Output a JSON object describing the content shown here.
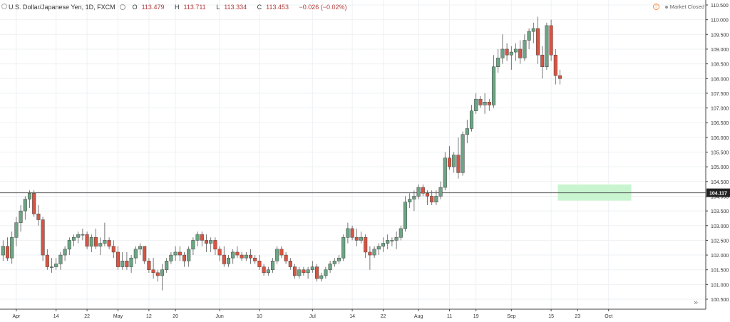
{
  "header": {
    "symbol": "U.S. Dollar/Japanese Yen, 1D, FXCM",
    "open_label": "O",
    "open": "113.479",
    "high_label": "H",
    "high": "113.711",
    "low_label": "L",
    "low": "113.334",
    "close_label": "C",
    "close": "113.453",
    "change": "−0.026 (−0.02%)",
    "market_status": "Market Closed"
  },
  "colors": {
    "up": "#6ba583",
    "down": "#d75442",
    "zone": "#c8f5d0",
    "line": "#555555"
  },
  "chart_data": {
    "type": "candlestick",
    "y_axis": {
      "ylim": [
        100.25,
        110.55
      ],
      "ticks": [
        "110.500",
        "110.000",
        "109.500",
        "109.000",
        "108.500",
        "108.000",
        "107.500",
        "107.000",
        "106.500",
        "106.000",
        "105.500",
        "105.000",
        "104.500",
        "104.000",
        "103.500",
        "103.000",
        "102.500",
        "102.000",
        "101.500",
        "101.000",
        "100.500"
      ],
      "tick_values": [
        110.5,
        110,
        109.5,
        109,
        108.5,
        108,
        107.5,
        107,
        106.5,
        106,
        105.5,
        105,
        104.5,
        104,
        103.5,
        103,
        102.5,
        102,
        101.5,
        101,
        100.5
      ]
    },
    "x_axis": {
      "labels": [
        "Apr",
        "14",
        "22",
        "May",
        "12",
        "20",
        "Jun",
        "10",
        "Jul",
        "14",
        "22",
        "Aug",
        "11",
        "19",
        "Sep",
        "15",
        "23",
        "Oct"
      ],
      "label_index": [
        3,
        12,
        19,
        26,
        33,
        39,
        49,
        58,
        70,
        79,
        86,
        94,
        101,
        107,
        115,
        124,
        130,
        137
      ]
    },
    "horizontal_line": {
      "value": 104.117,
      "label": "104.117"
    },
    "zone": {
      "from_index": 126,
      "to_index": 141,
      "low": 103.85,
      "high": 104.4
    },
    "ohlc": [
      [
        102.0,
        102.5,
        101.8,
        102.3
      ],
      [
        102.3,
        102.6,
        101.8,
        101.9
      ],
      [
        101.9,
        102.8,
        101.7,
        102.6
      ],
      [
        102.6,
        103.3,
        102.3,
        103.1
      ],
      [
        103.1,
        103.7,
        102.8,
        103.5
      ],
      [
        103.5,
        104.0,
        103.2,
        103.9
      ],
      [
        103.9,
        104.2,
        103.6,
        104.1
      ],
      [
        104.1,
        104.2,
        103.3,
        103.4
      ],
      [
        103.4,
        103.7,
        103.0,
        103.2
      ],
      [
        103.2,
        103.3,
        101.8,
        102.0
      ],
      [
        102.0,
        102.2,
        101.5,
        101.6
      ],
      [
        101.6,
        101.9,
        101.4,
        101.6
      ],
      [
        101.6,
        101.9,
        101.5,
        101.7
      ],
      [
        101.7,
        102.1,
        101.5,
        102.0
      ],
      [
        102.0,
        102.3,
        101.8,
        102.2
      ],
      [
        102.2,
        102.6,
        102.0,
        102.5
      ],
      [
        102.5,
        102.7,
        102.3,
        102.6
      ],
      [
        102.6,
        102.8,
        102.4,
        102.7
      ],
      [
        102.7,
        102.9,
        102.5,
        102.7
      ],
      [
        102.7,
        102.8,
        102.2,
        102.3
      ],
      [
        102.3,
        102.7,
        102.1,
        102.6
      ],
      [
        102.6,
        102.9,
        102.2,
        102.3
      ],
      [
        102.3,
        102.6,
        102.0,
        102.4
      ],
      [
        102.4,
        103.1,
        102.3,
        102.5
      ],
      [
        102.5,
        102.6,
        102.2,
        102.3
      ],
      [
        102.3,
        102.5,
        101.9,
        102.1
      ],
      [
        102.1,
        102.3,
        101.5,
        101.6
      ],
      [
        101.6,
        102.1,
        101.5,
        101.8
      ],
      [
        101.8,
        102.1,
        101.5,
        101.6
      ],
      [
        101.6,
        102.0,
        101.4,
        101.9
      ],
      [
        101.9,
        102.3,
        101.7,
        102.2
      ],
      [
        102.2,
        102.4,
        102.0,
        102.3
      ],
      [
        102.3,
        102.3,
        101.7,
        101.8
      ],
      [
        101.8,
        101.9,
        101.4,
        101.5
      ],
      [
        101.5,
        101.9,
        101.2,
        101.4
      ],
      [
        101.4,
        101.5,
        101.1,
        101.3
      ],
      [
        101.3,
        101.7,
        100.8,
        101.5
      ],
      [
        101.5,
        101.9,
        101.4,
        101.8
      ],
      [
        101.8,
        102.1,
        101.7,
        102.0
      ],
      [
        102.0,
        102.3,
        101.8,
        102.1
      ],
      [
        102.1,
        102.3,
        101.8,
        102.0
      ],
      [
        102.0,
        102.1,
        101.6,
        101.8
      ],
      [
        101.8,
        102.3,
        101.6,
        102.2
      ],
      [
        102.2,
        102.6,
        102.0,
        102.5
      ],
      [
        102.5,
        102.8,
        102.3,
        102.7
      ],
      [
        102.7,
        102.8,
        102.3,
        102.5
      ],
      [
        102.5,
        102.7,
        102.1,
        102.4
      ],
      [
        102.4,
        102.6,
        102.1,
        102.5
      ],
      [
        102.5,
        102.6,
        102.0,
        102.2
      ],
      [
        102.2,
        102.3,
        101.8,
        102.0
      ],
      [
        102.0,
        102.3,
        101.6,
        101.7
      ],
      [
        101.7,
        102.0,
        101.6,
        101.9
      ],
      [
        101.9,
        102.2,
        101.7,
        102.1
      ],
      [
        102.1,
        102.3,
        101.9,
        102.0
      ],
      [
        102.0,
        102.1,
        101.8,
        101.9
      ],
      [
        101.9,
        102.1,
        101.8,
        102.0
      ],
      [
        102.0,
        102.2,
        101.7,
        101.9
      ],
      [
        101.9,
        102.0,
        101.7,
        101.8
      ],
      [
        101.8,
        102.0,
        101.5,
        101.6
      ],
      [
        101.6,
        101.7,
        101.3,
        101.4
      ],
      [
        101.4,
        101.6,
        101.3,
        101.5
      ],
      [
        101.5,
        101.9,
        101.4,
        101.8
      ],
      [
        101.8,
        102.3,
        101.7,
        102.2
      ],
      [
        102.2,
        102.3,
        101.9,
        102.0
      ],
      [
        102.0,
        102.1,
        101.7,
        101.8
      ],
      [
        101.8,
        101.9,
        101.5,
        101.6
      ],
      [
        101.6,
        101.7,
        101.2,
        101.3
      ],
      [
        101.3,
        101.6,
        101.2,
        101.5
      ],
      [
        101.5,
        101.6,
        101.3,
        101.4
      ],
      [
        101.4,
        101.6,
        101.2,
        101.5
      ],
      [
        101.5,
        101.8,
        101.4,
        101.6
      ],
      [
        101.6,
        101.7,
        101.1,
        101.2
      ],
      [
        101.2,
        101.4,
        101.1,
        101.3
      ],
      [
        101.3,
        101.6,
        101.2,
        101.5
      ],
      [
        101.5,
        101.8,
        101.4,
        101.7
      ],
      [
        101.7,
        101.9,
        101.6,
        101.8
      ],
      [
        101.8,
        102.0,
        101.7,
        101.9
      ],
      [
        101.9,
        102.7,
        101.8,
        102.6
      ],
      [
        102.6,
        103.1,
        102.4,
        102.9
      ],
      [
        102.9,
        103.0,
        102.5,
        102.6
      ],
      [
        102.6,
        102.9,
        102.3,
        102.5
      ],
      [
        102.5,
        102.8,
        102.4,
        102.6
      ],
      [
        102.6,
        102.7,
        101.9,
        102.1
      ],
      [
        102.1,
        102.3,
        101.5,
        102.0
      ],
      [
        102.0,
        102.3,
        101.9,
        102.2
      ],
      [
        102.2,
        102.4,
        102.0,
        102.3
      ],
      [
        102.3,
        102.6,
        102.1,
        102.4
      ],
      [
        102.4,
        102.7,
        102.2,
        102.5
      ],
      [
        102.5,
        102.6,
        102.3,
        102.5
      ],
      [
        102.5,
        102.8,
        102.2,
        102.6
      ],
      [
        102.6,
        103.0,
        102.5,
        102.9
      ],
      [
        102.9,
        104.0,
        102.8,
        103.8
      ],
      [
        103.8,
        104.1,
        103.6,
        103.9
      ],
      [
        103.9,
        104.2,
        103.5,
        104.0
      ],
      [
        104.0,
        104.4,
        103.9,
        104.3
      ],
      [
        104.3,
        104.4,
        104.0,
        104.1
      ],
      [
        104.1,
        104.2,
        103.7,
        104.0
      ],
      [
        104.0,
        104.2,
        103.7,
        103.8
      ],
      [
        103.8,
        104.2,
        103.7,
        104.0
      ],
      [
        104.0,
        104.5,
        103.9,
        104.3
      ],
      [
        104.3,
        105.5,
        104.2,
        105.3
      ],
      [
        105.3,
        105.7,
        104.9,
        105.0
      ],
      [
        105.0,
        105.5,
        104.8,
        105.4
      ],
      [
        105.4,
        106.0,
        104.6,
        104.8
      ],
      [
        104.8,
        106.2,
        104.7,
        106.1
      ],
      [
        106.1,
        106.6,
        105.8,
        106.3
      ],
      [
        106.3,
        107.1,
        106.2,
        106.9
      ],
      [
        106.9,
        107.5,
        106.8,
        107.3
      ],
      [
        107.3,
        107.4,
        107.0,
        107.1
      ],
      [
        107.1,
        107.5,
        106.8,
        107.2
      ],
      [
        107.2,
        107.3,
        106.9,
        107.1
      ],
      [
        107.1,
        108.8,
        107.0,
        108.4
      ],
      [
        108.4,
        109.0,
        108.2,
        108.7
      ],
      [
        108.7,
        109.5,
        108.5,
        109.0
      ],
      [
        109.0,
        109.2,
        108.6,
        108.8
      ],
      [
        108.8,
        109.1,
        108.3,
        108.9
      ],
      [
        108.9,
        109.2,
        108.6,
        109.0
      ],
      [
        109.0,
        109.3,
        108.5,
        108.7
      ],
      [
        108.7,
        109.5,
        108.6,
        109.3
      ],
      [
        109.3,
        109.7,
        109.0,
        109.6
      ],
      [
        109.6,
        109.9,
        109.2,
        109.7
      ],
      [
        109.7,
        110.1,
        108.5,
        108.8
      ],
      [
        108.8,
        109.1,
        108.0,
        108.4
      ],
      [
        108.4,
        109.9,
        108.3,
        109.8
      ],
      [
        109.8,
        110.0,
        108.6,
        108.8
      ],
      [
        108.8,
        109.0,
        107.8,
        108.1
      ],
      [
        108.1,
        108.3,
        107.8,
        108.0
      ]
    ]
  }
}
